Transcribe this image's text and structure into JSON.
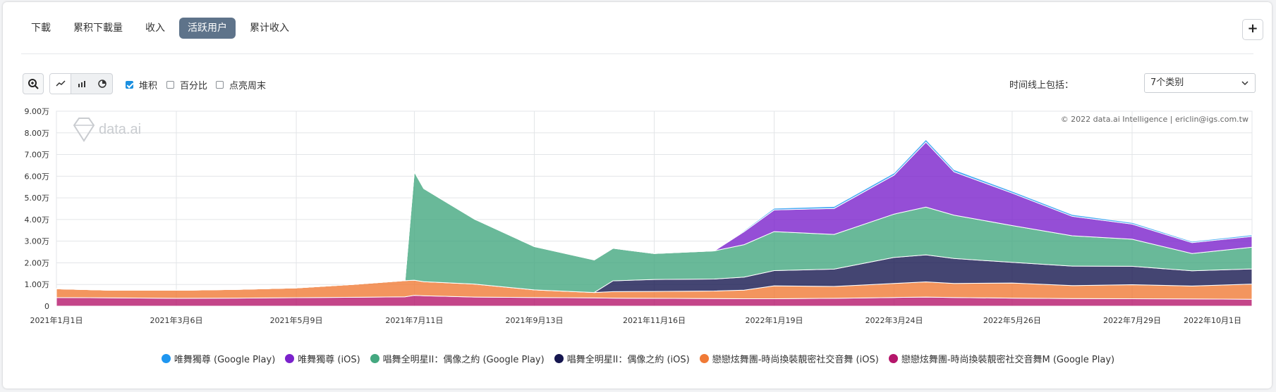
{
  "tabs": [
    {
      "label": "下載",
      "active": false
    },
    {
      "label": "累积下載量",
      "active": false
    },
    {
      "label": "收入",
      "active": false
    },
    {
      "label": "活跃用户",
      "active": true
    },
    {
      "label": "累计收入",
      "active": false
    }
  ],
  "add_button": "+",
  "toolbar": {
    "stacked_label": "堆积",
    "stacked_checked": true,
    "percent_label": "百分比",
    "percent_checked": false,
    "weekend_label": "点亮周末",
    "weekend_checked": false,
    "timeline_label": "时间线上包括：",
    "timeline_select": "7个类别"
  },
  "watermark": "data.ai",
  "copyright": "© 2022 data.ai Intelligence | ericlin@igs.com.tw",
  "chart_data": {
    "type": "area",
    "stacked": true,
    "ylim": [
      0,
      90000
    ],
    "y_ticks": [
      "0",
      "1.00万",
      "2.00万",
      "3.00万",
      "4.00万",
      "5.00万",
      "6.00万",
      "7.00万",
      "8.00万",
      "9.00万"
    ],
    "x_ticks": [
      "2021年1月1日",
      "2021年3月6日",
      "2021年5月9日",
      "2021年7月11日",
      "2021年9月13日",
      "2021年11月16日",
      "2022年1月19日",
      "2022年3月24日",
      "2022年5月26日",
      "2022年7月29日",
      "2022年10月1日"
    ],
    "x": [
      "2021-01-01",
      "2021-02-01",
      "2021-03-06",
      "2021-04-07",
      "2021-05-09",
      "2021-06-10",
      "2021-07-06",
      "2021-07-11",
      "2021-07-16",
      "2021-08-12",
      "2021-09-13",
      "2021-10-15",
      "2021-10-25",
      "2021-11-16",
      "2021-12-18",
      "2022-01-03",
      "2022-01-19",
      "2022-02-20",
      "2022-03-24",
      "2022-04-10",
      "2022-04-25",
      "2022-05-26",
      "2022-06-27",
      "2022-07-29",
      "2022-08-30",
      "2022-10-01"
    ],
    "series": [
      {
        "name": "戀戀炫舞團-時尚換裝靚密社交音舞M (Google Play)",
        "color": "#b5166b",
        "values": [
          4000,
          3800,
          3600,
          3700,
          3900,
          4100,
          4300,
          5000,
          4800,
          4200,
          4000,
          3800,
          3700,
          3600,
          3500,
          3400,
          3400,
          3600,
          4000,
          4200,
          4000,
          3700,
          3500,
          3400,
          3300,
          3200
        ]
      },
      {
        "name": "戀戀炫舞團-時尚換裝靚密社交音舞 (iOS)",
        "color": "#f07a36",
        "values": [
          4000,
          3500,
          3700,
          4000,
          4500,
          6000,
          7500,
          7000,
          6500,
          6000,
          3500,
          2500,
          3000,
          3200,
          3500,
          4000,
          6000,
          5500,
          6500,
          7000,
          6500,
          7000,
          6000,
          6500,
          6000,
          7000
        ]
      },
      {
        "name": "唱舞全明星II：偶像之約 (iOS)",
        "color": "#15164f",
        "values": [
          0,
          0,
          0,
          0,
          0,
          0,
          0,
          0,
          0,
          0,
          0,
          0,
          5000,
          5500,
          5500,
          6000,
          7000,
          8000,
          12000,
          12500,
          11500,
          9500,
          9000,
          8500,
          7000,
          7000
        ]
      },
      {
        "name": "唱舞全明星II：偶像之約 (Google Play)",
        "color": "#44a880",
        "values": [
          0,
          0,
          0,
          0,
          0,
          0,
          0,
          50000,
          43000,
          30000,
          20000,
          15000,
          15000,
          12000,
          13000,
          15000,
          18000,
          16000,
          20000,
          22000,
          20000,
          17000,
          14000,
          12500,
          8000,
          10000
        ]
      },
      {
        "name": "唯舞獨尊 (iOS)",
        "color": "#7b22cc",
        "values": [
          0,
          0,
          0,
          0,
          0,
          0,
          0,
          0,
          0,
          0,
          0,
          0,
          0,
          0,
          0,
          6000,
          10000,
          12000,
          18000,
          30000,
          20000,
          15000,
          9000,
          7000,
          5000,
          5000
        ]
      },
      {
        "name": "唯舞獨尊 (Google Play)",
        "color": "#1e96f0",
        "values": [
          0,
          0,
          0,
          0,
          0,
          0,
          0,
          0,
          0,
          0,
          0,
          0,
          0,
          0,
          0,
          500,
          800,
          900,
          1000,
          1200,
          1000,
          900,
          800,
          700,
          600,
          700
        ]
      }
    ],
    "legend_position": "bottom"
  }
}
